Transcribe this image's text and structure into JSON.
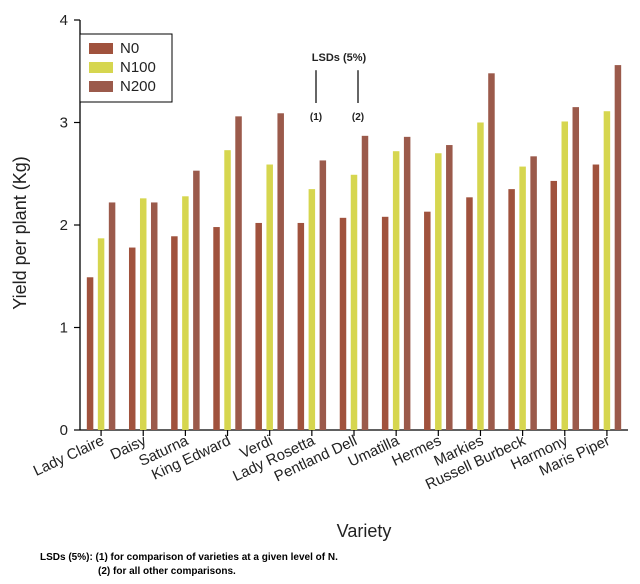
{
  "chart_data": {
    "type": "bar",
    "xlabel": "Variety",
    "ylabel": "Yield per plant (Kg)",
    "ylim": [
      0,
      4
    ],
    "yticks": [
      "0",
      "1",
      "2",
      "3",
      "4"
    ],
    "grid": false,
    "legend_position": "top-left",
    "categories": [
      "Lady Claire",
      "Daisy",
      "Saturna",
      "King Edward",
      "Verdi",
      "Lady Rosetta",
      "Pentland Dell",
      "Umatilla",
      "Hermes",
      "Markies",
      "Russell Burbeck",
      "Harmony",
      "Maris Piper"
    ],
    "series": [
      {
        "name": "N0",
        "color": "#a0523d",
        "values": [
          1.49,
          1.78,
          1.89,
          1.98,
          2.02,
          2.02,
          2.07,
          2.08,
          2.13,
          2.27,
          2.35,
          2.43,
          2.59
        ]
      },
      {
        "name": "N100",
        "color": "#d6d64f",
        "values": [
          1.87,
          2.26,
          2.28,
          2.73,
          2.59,
          2.35,
          2.49,
          2.72,
          2.7,
          3.0,
          2.57,
          3.01,
          3.11
        ]
      },
      {
        "name": "N200",
        "color": "#9b5a4b",
        "values": [
          2.22,
          2.22,
          2.53,
          3.06,
          3.09,
          2.63,
          2.87,
          2.86,
          2.78,
          3.48,
          2.67,
          3.15,
          3.56
        ]
      }
    ],
    "lsd": {
      "title": "LSDs (5%)",
      "bars": [
        {
          "label": "(1)",
          "value": 0.32
        },
        {
          "label": "(2)",
          "value": 0.32
        }
      ]
    }
  },
  "footnote": {
    "line1": "LSDs (5%): (1) for comparison of varieties at a given level of N.",
    "line2": "(2) for all other comparisons."
  }
}
